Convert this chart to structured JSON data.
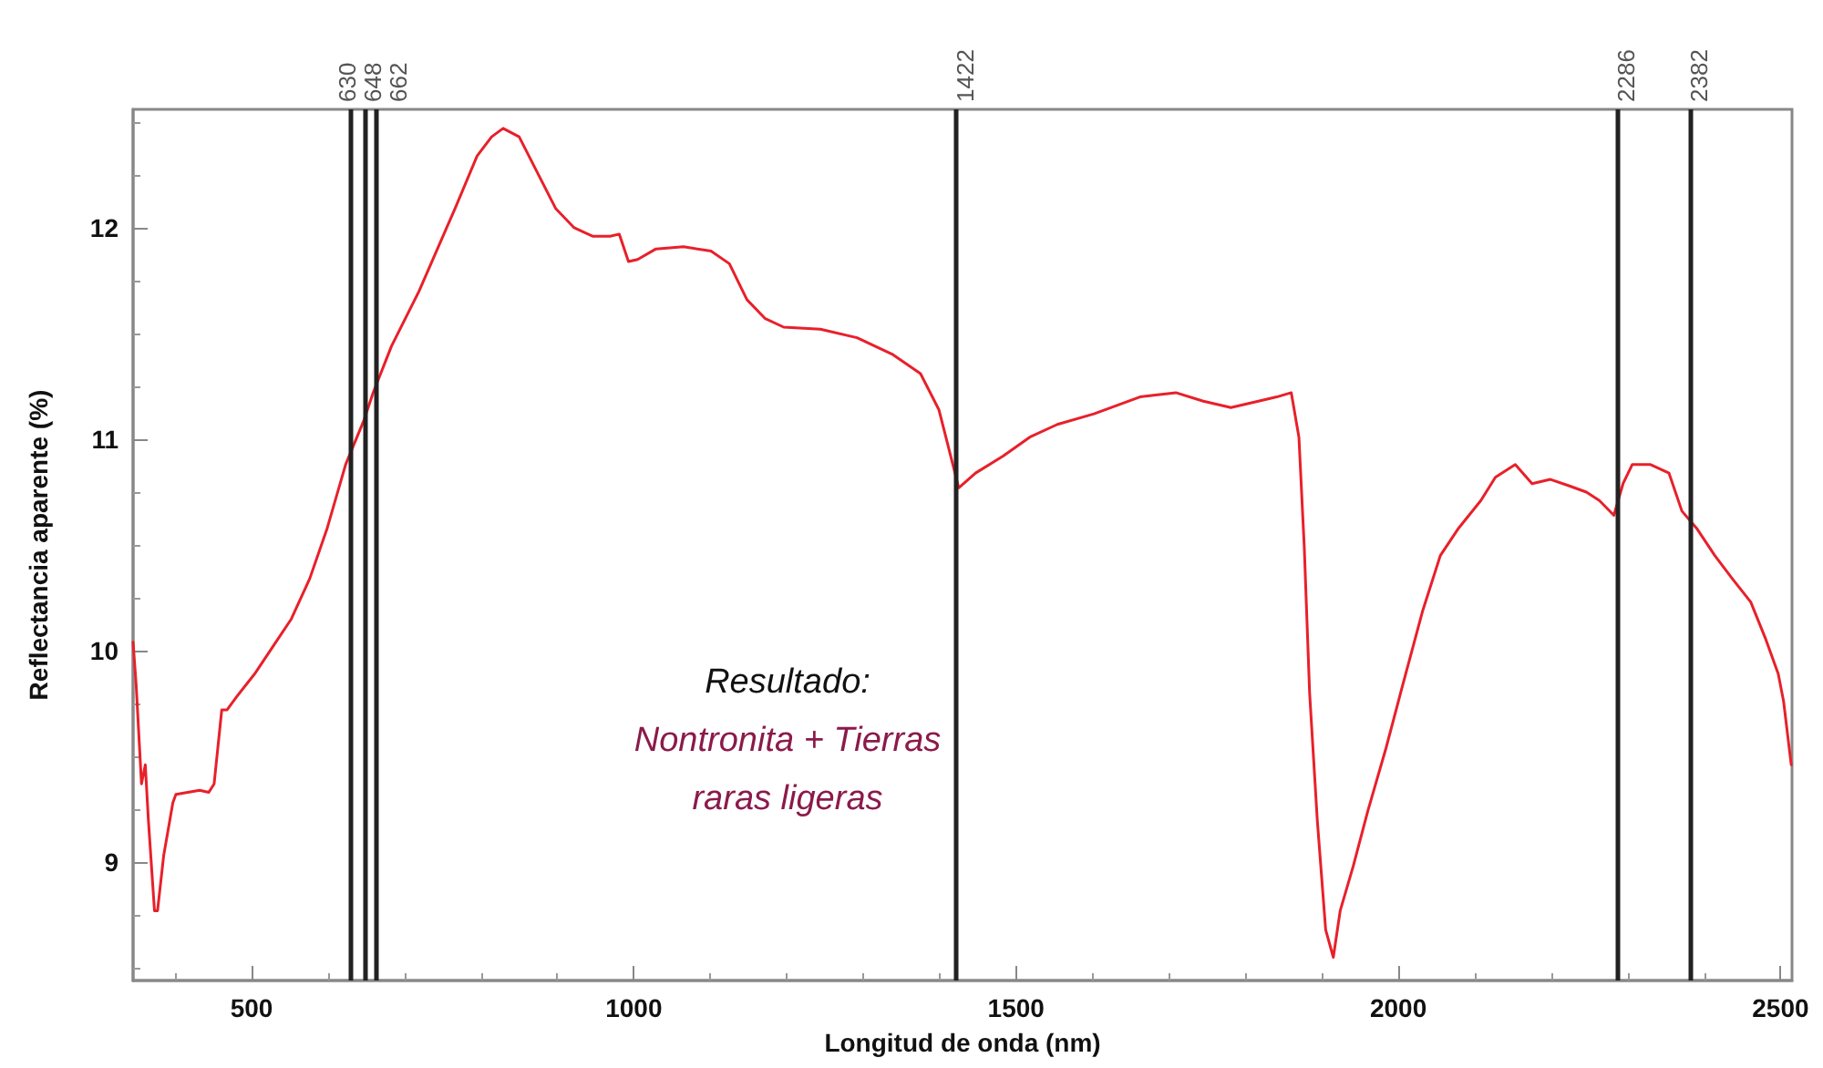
{
  "chart_data": {
    "type": "line",
    "xlabel": "Longitud de onda (nm)",
    "ylabel": "Reflectancia aparente (%)",
    "xlim": [
      345,
      2515
    ],
    "ylim": [
      8.44,
      12.56
    ],
    "xticks": [
      500,
      1000,
      1500,
      2000,
      2500
    ],
    "yticks": [
      9,
      10,
      11,
      12
    ],
    "grid": false,
    "marker": "none",
    "line_style": "solid",
    "series": [
      {
        "color": "#e8202a",
        "x": [
          345,
          349,
          356,
          361,
          365,
          373,
          377,
          385,
          397,
          401,
          432,
          444,
          451,
          461,
          468,
          480,
          504,
          528,
          552,
          576,
          599,
          623,
          647,
          659,
          683,
          719,
          766,
          795,
          814,
          829,
          850,
          874,
          898,
          922,
          946,
          969,
          981,
          993,
          1005,
          1029,
          1065,
          1101,
          1125,
          1148,
          1172,
          1196,
          1244,
          1292,
          1339,
          1375,
          1399,
          1411,
          1425,
          1447,
          1483,
          1518,
          1554,
          1602,
          1662,
          1709,
          1745,
          1781,
          1817,
          1841,
          1860,
          1870,
          1877,
          1884,
          1894,
          1905,
          1915,
          1924,
          1941,
          1960,
          1984,
          2003,
          2032,
          2055,
          2079,
          2108,
          2127,
          2153,
          2175,
          2199,
          2223,
          2246,
          2263,
          2282,
          2294,
          2306,
          2330,
          2354,
          2371,
          2390,
          2414,
          2437,
          2461,
          2480,
          2497,
          2504,
          2514
        ],
        "values": [
          10.04,
          9.84,
          9.37,
          9.46,
          9.2,
          8.77,
          8.77,
          9.03,
          9.28,
          9.32,
          9.34,
          9.33,
          9.37,
          9.72,
          9.72,
          9.78,
          9.89,
          10.02,
          10.15,
          10.34,
          10.58,
          10.88,
          11.09,
          11.22,
          11.44,
          11.7,
          12.09,
          12.34,
          12.43,
          12.47,
          12.43,
          12.26,
          12.09,
          12.0,
          11.96,
          11.96,
          11.97,
          11.84,
          11.85,
          11.9,
          11.91,
          11.89,
          11.83,
          11.66,
          11.57,
          11.53,
          11.52,
          11.48,
          11.4,
          11.31,
          11.14,
          10.97,
          10.77,
          10.84,
          10.92,
          11.01,
          11.07,
          11.12,
          11.2,
          11.22,
          11.18,
          11.15,
          11.18,
          11.2,
          11.22,
          11.01,
          10.49,
          9.8,
          9.2,
          8.68,
          8.55,
          8.77,
          8.98,
          9.24,
          9.54,
          9.8,
          10.19,
          10.45,
          10.58,
          10.71,
          10.82,
          10.88,
          10.79,
          10.81,
          10.78,
          10.75,
          10.71,
          10.64,
          10.79,
          10.88,
          10.88,
          10.84,
          10.66,
          10.58,
          10.45,
          10.34,
          10.23,
          10.06,
          9.89,
          9.76,
          9.46
        ]
      }
    ],
    "ref_lines": [
      {
        "axis": "x",
        "value": 630,
        "label": "630",
        "color": "#222222"
      },
      {
        "axis": "x",
        "value": 648,
        "label": "648",
        "color": "#222222"
      },
      {
        "axis": "x",
        "value": 662,
        "label": "662",
        "color": "#222222"
      },
      {
        "axis": "x",
        "value": 1422,
        "label": "1422",
        "color": "#222222"
      },
      {
        "axis": "x",
        "value": 2286,
        "label": "2286",
        "color": "#222222"
      },
      {
        "axis": "x",
        "value": 2382,
        "label": "2382",
        "color": "#222222"
      }
    ],
    "annotations": [
      "Resultado:",
      "Nontronita + Tierras",
      "raras ligeras"
    ]
  }
}
